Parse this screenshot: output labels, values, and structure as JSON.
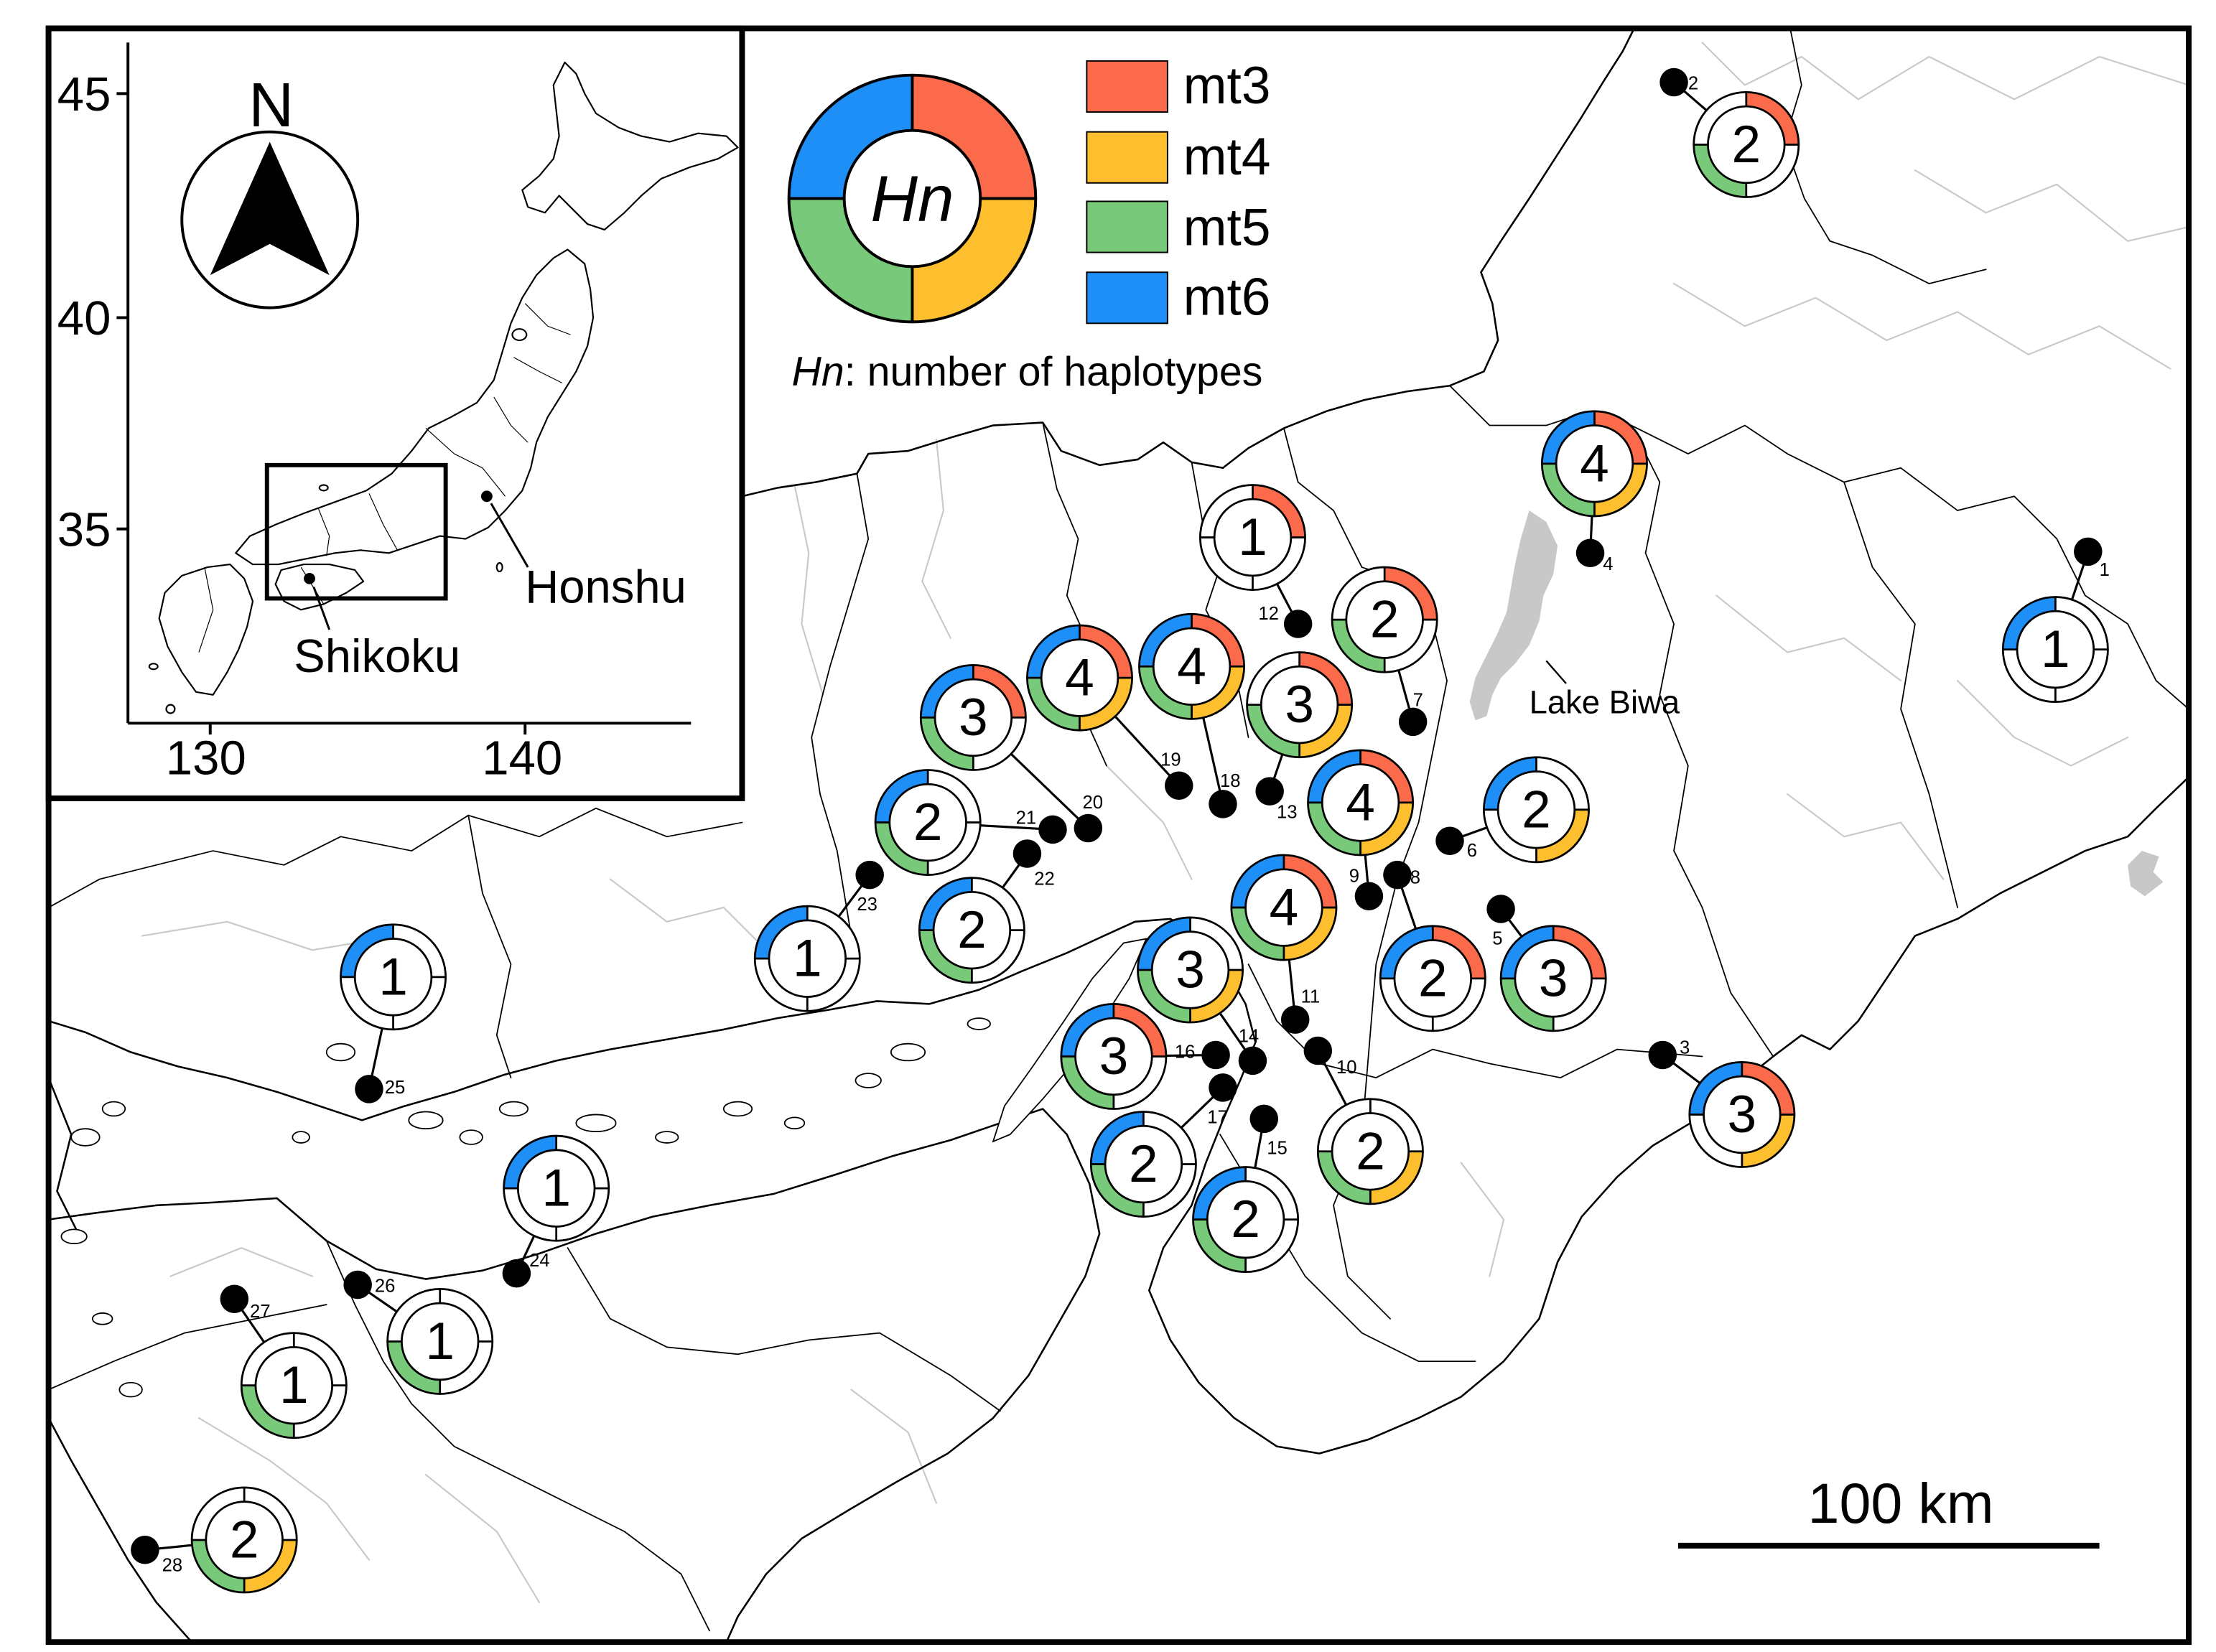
{
  "legend": {
    "center_label": "Hn",
    "caption_italic": "Hn",
    "caption_rest": ": number of haplotypes",
    "haplotypes": [
      {
        "label": "mt3",
        "color": "#fb6a4b"
      },
      {
        "label": "mt4",
        "color": "#fdbf2e"
      },
      {
        "label": "mt5",
        "color": "#79c97a"
      },
      {
        "label": "mt6",
        "color": "#1f8ff8"
      }
    ]
  },
  "map": {
    "lake_label": "Lake Biwa",
    "scale_bar_label": "100 km"
  },
  "inset": {
    "north_label": "N",
    "y_ticks": [
      "45",
      "40",
      "35"
    ],
    "x_ticks": [
      "130",
      "140"
    ],
    "honshu_label": "Honshu",
    "shikoku_label": "Shikoku"
  },
  "sites": [
    {
      "site": "1",
      "hn": "1",
      "haplotypes": {
        "mt3": false,
        "mt4": false,
        "mt5": false,
        "mt6": true
      }
    },
    {
      "site": "2",
      "hn": "2",
      "haplotypes": {
        "mt3": true,
        "mt4": false,
        "mt5": true,
        "mt6": false
      }
    },
    {
      "site": "3",
      "hn": "3",
      "haplotypes": {
        "mt3": true,
        "mt4": true,
        "mt5": false,
        "mt6": true
      }
    },
    {
      "site": "4",
      "hn": "4",
      "haplotypes": {
        "mt3": true,
        "mt4": true,
        "mt5": true,
        "mt6": true
      }
    },
    {
      "site": "5",
      "hn": "3",
      "haplotypes": {
        "mt3": true,
        "mt4": false,
        "mt5": true,
        "mt6": true
      }
    },
    {
      "site": "6",
      "hn": "2",
      "haplotypes": {
        "mt3": false,
        "mt4": true,
        "mt5": false,
        "mt6": true
      }
    },
    {
      "site": "7",
      "hn": "2",
      "haplotypes": {
        "mt3": true,
        "mt4": false,
        "mt5": true,
        "mt6": false
      }
    },
    {
      "site": "8",
      "hn": "2",
      "haplotypes": {
        "mt3": true,
        "mt4": false,
        "mt5": false,
        "mt6": true
      }
    },
    {
      "site": "9",
      "hn": "4",
      "haplotypes": {
        "mt3": true,
        "mt4": true,
        "mt5": true,
        "mt6": true
      }
    },
    {
      "site": "10",
      "hn": "2",
      "haplotypes": {
        "mt3": false,
        "mt4": true,
        "mt5": true,
        "mt6": false
      }
    },
    {
      "site": "11",
      "hn": "4",
      "haplotypes": {
        "mt3": true,
        "mt4": true,
        "mt5": true,
        "mt6": true
      }
    },
    {
      "site": "12",
      "hn": "1",
      "haplotypes": {
        "mt3": true,
        "mt4": false,
        "mt5": false,
        "mt6": false
      }
    },
    {
      "site": "13",
      "hn": "3",
      "haplotypes": {
        "mt3": true,
        "mt4": true,
        "mt5": true,
        "mt6": false
      }
    },
    {
      "site": "14",
      "hn": "3",
      "haplotypes": {
        "mt3": false,
        "mt4": true,
        "mt5": true,
        "mt6": true
      }
    },
    {
      "site": "15",
      "hn": "2",
      "haplotypes": {
        "mt3": false,
        "mt4": false,
        "mt5": true,
        "mt6": true
      }
    },
    {
      "site": "16",
      "hn": "3",
      "haplotypes": {
        "mt3": true,
        "mt4": false,
        "mt5": true,
        "mt6": true
      }
    },
    {
      "site": "17",
      "hn": "2",
      "haplotypes": {
        "mt3": false,
        "mt4": false,
        "mt5": true,
        "mt6": true
      }
    },
    {
      "site": "18",
      "hn": "4",
      "haplotypes": {
        "mt3": true,
        "mt4": true,
        "mt5": true,
        "mt6": true
      }
    },
    {
      "site": "19",
      "hn": "4",
      "haplotypes": {
        "mt3": true,
        "mt4": true,
        "mt5": true,
        "mt6": true
      }
    },
    {
      "site": "20",
      "hn": "3",
      "haplotypes": {
        "mt3": true,
        "mt4": false,
        "mt5": true,
        "mt6": true
      }
    },
    {
      "site": "21",
      "hn": "2",
      "haplotypes": {
        "mt3": false,
        "mt4": false,
        "mt5": true,
        "mt6": true
      }
    },
    {
      "site": "22",
      "hn": "2",
      "haplotypes": {
        "mt3": false,
        "mt4": false,
        "mt5": true,
        "mt6": true
      }
    },
    {
      "site": "23",
      "hn": "1",
      "haplotypes": {
        "mt3": false,
        "mt4": false,
        "mt5": false,
        "mt6": true
      }
    },
    {
      "site": "24",
      "hn": "1",
      "haplotypes": {
        "mt3": false,
        "mt4": false,
        "mt5": false,
        "mt6": true
      }
    },
    {
      "site": "25",
      "hn": "1",
      "haplotypes": {
        "mt3": false,
        "mt4": false,
        "mt5": false,
        "mt6": true
      }
    },
    {
      "site": "26",
      "hn": "1",
      "haplotypes": {
        "mt3": false,
        "mt4": false,
        "mt5": true,
        "mt6": false
      }
    },
    {
      "site": "27",
      "hn": "1",
      "haplotypes": {
        "mt3": false,
        "mt4": false,
        "mt5": true,
        "mt6": false
      }
    },
    {
      "site": "28",
      "hn": "2",
      "haplotypes": {
        "mt3": false,
        "mt4": true,
        "mt5": true,
        "mt6": false
      }
    }
  ]
}
